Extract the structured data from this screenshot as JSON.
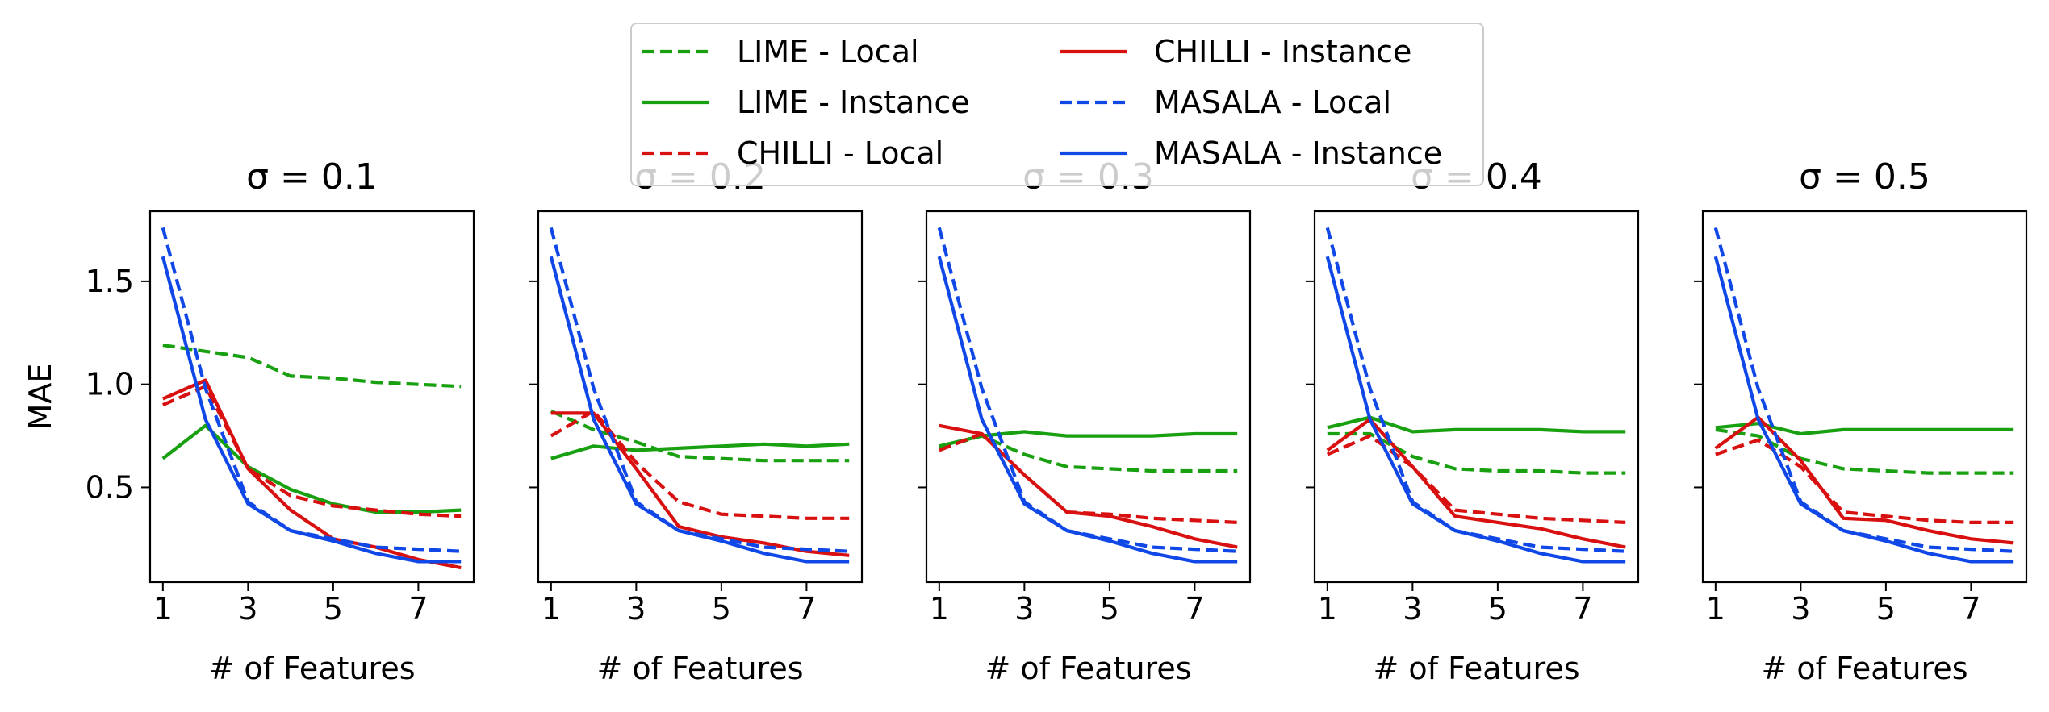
{
  "legend": {
    "placement": "upper-center",
    "entries": [
      {
        "label": "LIME - Local",
        "color": "#18a010",
        "dash": "dashed"
      },
      {
        "label": "LIME - Instance",
        "color": "#18a010",
        "dash": "solid"
      },
      {
        "label": "CHILLI - Local",
        "color": "#d81010",
        "dash": "dashed"
      },
      {
        "label": "CHILLI - Instance",
        "color": "#d81010",
        "dash": "solid"
      },
      {
        "label": "MASALA - Local",
        "color": "#1048e8",
        "dash": "dashed"
      },
      {
        "label": "MASALA - Instance",
        "color": "#1048e8",
        "dash": "solid"
      }
    ]
  },
  "chart_data": [
    {
      "type": "line",
      "title": "σ = 0.1",
      "xlabel": "# of Features",
      "ylabel": "MAE",
      "x": [
        1,
        2,
        3,
        4,
        5,
        6,
        7,
        8
      ],
      "xticks": [
        1,
        3,
        5,
        7
      ],
      "yticks": [
        0.5,
        1.0,
        1.5
      ],
      "ytick_labels": [
        "0.5",
        "1.0",
        "1.5"
      ],
      "xlim": [
        0.7,
        8.3
      ],
      "ylim": [
        0.04,
        1.84
      ],
      "grid": false,
      "series": [
        {
          "name": "LIME - Local",
          "values": [
            1.19,
            1.16,
            1.13,
            1.04,
            1.03,
            1.01,
            1.0,
            0.99
          ]
        },
        {
          "name": "LIME - Instance",
          "values": [
            0.64,
            0.8,
            0.6,
            0.49,
            0.42,
            0.38,
            0.38,
            0.39
          ]
        },
        {
          "name": "CHILLI - Local",
          "values": [
            0.9,
            0.99,
            0.59,
            0.46,
            0.41,
            0.39,
            0.37,
            0.36
          ]
        },
        {
          "name": "CHILLI - Instance",
          "values": [
            0.93,
            1.02,
            0.59,
            0.39,
            0.25,
            0.21,
            0.15,
            0.11
          ]
        },
        {
          "name": "MASALA - Local",
          "values": [
            1.76,
            0.98,
            0.43,
            0.29,
            0.25,
            0.21,
            0.2,
            0.19
          ]
        },
        {
          "name": "MASALA - Instance",
          "values": [
            1.62,
            0.83,
            0.42,
            0.29,
            0.24,
            0.18,
            0.14,
            0.14
          ]
        }
      ]
    },
    {
      "type": "line",
      "title": "σ = 0.2",
      "xlabel": "# of Features",
      "ylabel": "",
      "x": [
        1,
        2,
        3,
        4,
        5,
        6,
        7,
        8
      ],
      "xticks": [
        1,
        3,
        5,
        7
      ],
      "yticks": [
        0.5,
        1.0,
        1.5
      ],
      "ytick_labels": [
        "",
        "",
        ""
      ],
      "xlim": [
        0.7,
        8.3
      ],
      "ylim": [
        0.04,
        1.84
      ],
      "grid": false,
      "series": [
        {
          "name": "LIME - Local",
          "values": [
            0.87,
            0.78,
            0.72,
            0.65,
            0.64,
            0.63,
            0.63,
            0.63
          ]
        },
        {
          "name": "LIME - Instance",
          "values": [
            0.64,
            0.7,
            0.68,
            0.69,
            0.7,
            0.71,
            0.7,
            0.71
          ]
        },
        {
          "name": "CHILLI - Local",
          "values": [
            0.75,
            0.87,
            0.62,
            0.43,
            0.37,
            0.36,
            0.35,
            0.35
          ]
        },
        {
          "name": "CHILLI - Instance",
          "values": [
            0.86,
            0.86,
            0.59,
            0.31,
            0.26,
            0.23,
            0.19,
            0.17
          ]
        },
        {
          "name": "MASALA - Local",
          "values": [
            1.76,
            0.98,
            0.43,
            0.29,
            0.25,
            0.21,
            0.2,
            0.19
          ]
        },
        {
          "name": "MASALA - Instance",
          "values": [
            1.62,
            0.83,
            0.42,
            0.29,
            0.24,
            0.18,
            0.14,
            0.14
          ]
        }
      ]
    },
    {
      "type": "line",
      "title": "σ = 0.3",
      "xlabel": "# of Features",
      "ylabel": "",
      "x": [
        1,
        2,
        3,
        4,
        5,
        6,
        7,
        8
      ],
      "xticks": [
        1,
        3,
        5,
        7
      ],
      "yticks": [
        0.5,
        1.0,
        1.5
      ],
      "ytick_labels": [
        "",
        "",
        ""
      ],
      "xlim": [
        0.7,
        8.3
      ],
      "ylim": [
        0.04,
        1.84
      ],
      "grid": false,
      "series": [
        {
          "name": "LIME - Local",
          "values": [
            0.69,
            0.75,
            0.66,
            0.6,
            0.59,
            0.58,
            0.58,
            0.58
          ]
        },
        {
          "name": "LIME - Instance",
          "values": [
            0.7,
            0.75,
            0.77,
            0.75,
            0.75,
            0.75,
            0.76,
            0.76
          ]
        },
        {
          "name": "CHILLI - Local",
          "values": [
            0.68,
            0.76,
            0.56,
            0.38,
            0.37,
            0.35,
            0.34,
            0.33
          ]
        },
        {
          "name": "CHILLI - Instance",
          "values": [
            0.8,
            0.76,
            0.56,
            0.38,
            0.36,
            0.31,
            0.25,
            0.21
          ]
        },
        {
          "name": "MASALA - Local",
          "values": [
            1.76,
            0.98,
            0.43,
            0.29,
            0.25,
            0.21,
            0.2,
            0.19
          ]
        },
        {
          "name": "MASALA - Instance",
          "values": [
            1.62,
            0.83,
            0.42,
            0.29,
            0.24,
            0.18,
            0.14,
            0.14
          ]
        }
      ]
    },
    {
      "type": "line",
      "title": "σ = 0.4",
      "xlabel": "# of Features",
      "ylabel": "",
      "x": [
        1,
        2,
        3,
        4,
        5,
        6,
        7,
        8
      ],
      "xticks": [
        1,
        3,
        5,
        7
      ],
      "yticks": [
        0.5,
        1.0,
        1.5
      ],
      "ytick_labels": [
        "",
        "",
        ""
      ],
      "xlim": [
        0.7,
        8.3
      ],
      "ylim": [
        0.04,
        1.84
      ],
      "grid": false,
      "series": [
        {
          "name": "LIME - Local",
          "values": [
            0.76,
            0.76,
            0.65,
            0.59,
            0.58,
            0.58,
            0.57,
            0.57
          ]
        },
        {
          "name": "LIME - Instance",
          "values": [
            0.79,
            0.84,
            0.77,
            0.78,
            0.78,
            0.78,
            0.77,
            0.77
          ]
        },
        {
          "name": "CHILLI - Local",
          "values": [
            0.66,
            0.75,
            0.6,
            0.39,
            0.37,
            0.35,
            0.34,
            0.33
          ]
        },
        {
          "name": "CHILLI - Instance",
          "values": [
            0.68,
            0.83,
            0.6,
            0.36,
            0.33,
            0.3,
            0.25,
            0.21
          ]
        },
        {
          "name": "MASALA - Local",
          "values": [
            1.76,
            0.98,
            0.43,
            0.29,
            0.25,
            0.21,
            0.2,
            0.19
          ]
        },
        {
          "name": "MASALA - Instance",
          "values": [
            1.62,
            0.83,
            0.42,
            0.29,
            0.24,
            0.18,
            0.14,
            0.14
          ]
        }
      ]
    },
    {
      "type": "line",
      "title": "σ = 0.5",
      "xlabel": "# of Features",
      "ylabel": "",
      "x": [
        1,
        2,
        3,
        4,
        5,
        6,
        7,
        8
      ],
      "xticks": [
        1,
        3,
        5,
        7
      ],
      "yticks": [
        0.5,
        1.0,
        1.5
      ],
      "ytick_labels": [
        "",
        "",
        ""
      ],
      "xlim": [
        0.7,
        8.3
      ],
      "ylim": [
        0.04,
        1.84
      ],
      "grid": false,
      "series": [
        {
          "name": "LIME - Local",
          "values": [
            0.78,
            0.75,
            0.64,
            0.59,
            0.58,
            0.57,
            0.57,
            0.57
          ]
        },
        {
          "name": "LIME - Instance",
          "values": [
            0.79,
            0.81,
            0.76,
            0.78,
            0.78,
            0.78,
            0.78,
            0.78
          ]
        },
        {
          "name": "CHILLI - Local",
          "values": [
            0.66,
            0.73,
            0.6,
            0.38,
            0.36,
            0.34,
            0.33,
            0.33
          ]
        },
        {
          "name": "CHILLI - Instance",
          "values": [
            0.69,
            0.84,
            0.63,
            0.35,
            0.34,
            0.29,
            0.25,
            0.23
          ]
        },
        {
          "name": "MASALA - Local",
          "values": [
            1.76,
            0.98,
            0.43,
            0.29,
            0.25,
            0.21,
            0.2,
            0.19
          ]
        },
        {
          "name": "MASALA - Instance",
          "values": [
            1.62,
            0.83,
            0.42,
            0.29,
            0.24,
            0.18,
            0.14,
            0.14
          ]
        }
      ]
    }
  ]
}
